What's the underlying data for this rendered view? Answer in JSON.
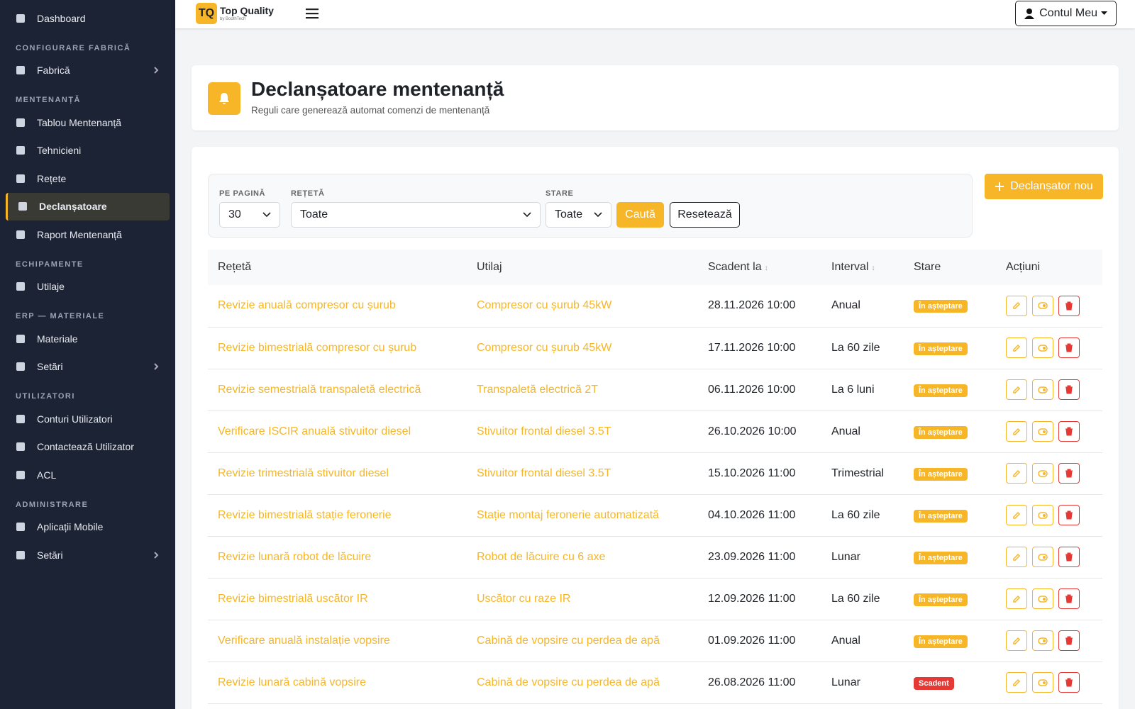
{
  "header": {
    "logo_mark": "TQ",
    "brand": "Top Quality",
    "brand_sub": "by BoothTech",
    "account": "Contul Meu"
  },
  "sidebar": {
    "top": [
      {
        "label": "Dashboard"
      }
    ],
    "sections": [
      {
        "heading": "CONFIGURARE FABRICĂ",
        "items": [
          {
            "label": "Fabrică",
            "expandable": true
          }
        ]
      },
      {
        "heading": "MENTENANȚĂ",
        "items": [
          {
            "label": "Tablou Mentenanță"
          },
          {
            "label": "Tehnicieni"
          },
          {
            "label": "Rețete"
          },
          {
            "label": "Declanșatoare",
            "active": true
          },
          {
            "label": "Raport Mentenanță"
          }
        ]
      },
      {
        "heading": "ECHIPAMENTE",
        "items": [
          {
            "label": "Utilaje"
          }
        ]
      },
      {
        "heading": "ERP — MATERIALE",
        "items": [
          {
            "label": "Materiale"
          },
          {
            "label": "Setări",
            "expandable": true
          }
        ]
      },
      {
        "heading": "UTILIZATORI",
        "items": [
          {
            "label": "Conturi Utilizatori"
          },
          {
            "label": "Contactează Utilizator"
          },
          {
            "label": "ACL"
          }
        ]
      },
      {
        "heading": "ADMINISTRARE",
        "items": [
          {
            "label": "Aplicații Mobile"
          },
          {
            "label": "Setări",
            "expandable": true
          }
        ]
      }
    ]
  },
  "page": {
    "title": "Declanșatoare mentenanță",
    "subtitle": "Reguli care generează automat comenzi de mentenanță"
  },
  "filters": {
    "per_page": {
      "label": "PE PAGINĂ",
      "value": "30"
    },
    "recipe": {
      "label": "REȚETĂ",
      "value": "Toate"
    },
    "status": {
      "label": "STARE",
      "value": "Toate"
    },
    "search": "Caută",
    "reset": "Resetează",
    "new": "Declanșator nou"
  },
  "table": {
    "columns": [
      {
        "label": "Rețetă"
      },
      {
        "label": "Utilaj"
      },
      {
        "label": "Scadent la",
        "sortable": true
      },
      {
        "label": "Interval",
        "sortable": true
      },
      {
        "label": "Stare"
      },
      {
        "label": "Acțiuni"
      }
    ],
    "rows": [
      {
        "recipe": "Revizie anuală compresor cu șurub",
        "equipment": "Compresor cu șurub 45kW",
        "due": "28.11.2026 10:00",
        "interval": "Anual",
        "status": {
          "label": "În așteptare",
          "color": "#f6b627"
        }
      },
      {
        "recipe": "Revizie bimestrială compresor cu șurub",
        "equipment": "Compresor cu șurub 45kW",
        "due": "17.11.2026 10:00",
        "interval": "La 60 zile",
        "status": {
          "label": "În așteptare",
          "color": "#f6b627"
        }
      },
      {
        "recipe": "Revizie semestrială transpaletă electrică",
        "equipment": "Transpaletă electrică 2T",
        "due": "06.11.2026 10:00",
        "interval": "La 6 luni",
        "status": {
          "label": "În așteptare",
          "color": "#f6b627"
        }
      },
      {
        "recipe": "Verificare ISCIR anuală stivuitor diesel",
        "equipment": "Stivuitor frontal diesel 3.5T",
        "due": "26.10.2026 10:00",
        "interval": "Anual",
        "status": {
          "label": "În așteptare",
          "color": "#f6b627"
        }
      },
      {
        "recipe": "Revizie trimestrială stivuitor diesel",
        "equipment": "Stivuitor frontal diesel 3.5T",
        "due": "15.10.2026 11:00",
        "interval": "Trimestrial",
        "status": {
          "label": "În așteptare",
          "color": "#f6b627"
        }
      },
      {
        "recipe": "Revizie bimestrială stație feronerie",
        "equipment": "Stație montaj feronerie automatizată",
        "due": "04.10.2026 11:00",
        "interval": "La 60 zile",
        "status": {
          "label": "În așteptare",
          "color": "#f6b627"
        }
      },
      {
        "recipe": "Revizie lunară robot de lăcuire",
        "equipment": "Robot de lăcuire cu 6 axe",
        "due": "23.09.2026 11:00",
        "interval": "Lunar",
        "status": {
          "label": "În așteptare",
          "color": "#f6b627"
        }
      },
      {
        "recipe": "Revizie bimestrială uscător IR",
        "equipment": "Uscător cu raze IR",
        "due": "12.09.2026 11:00",
        "interval": "La 60 zile",
        "status": {
          "label": "În așteptare",
          "color": "#f6b627"
        }
      },
      {
        "recipe": "Verificare anuală instalație vopsire",
        "equipment": "Cabină de vopsire cu perdea de apă",
        "due": "01.09.2026 11:00",
        "interval": "Anual",
        "status": {
          "label": "În așteptare",
          "color": "#f6b627"
        }
      },
      {
        "recipe": "Revizie lunară cabină vopsire",
        "equipment": "Cabină de vopsire cu perdea de apă",
        "due": "26.08.2026 11:00",
        "interval": "Lunar",
        "status": {
          "label": "Scadent",
          "color": "#e53935"
        }
      }
    ]
  }
}
